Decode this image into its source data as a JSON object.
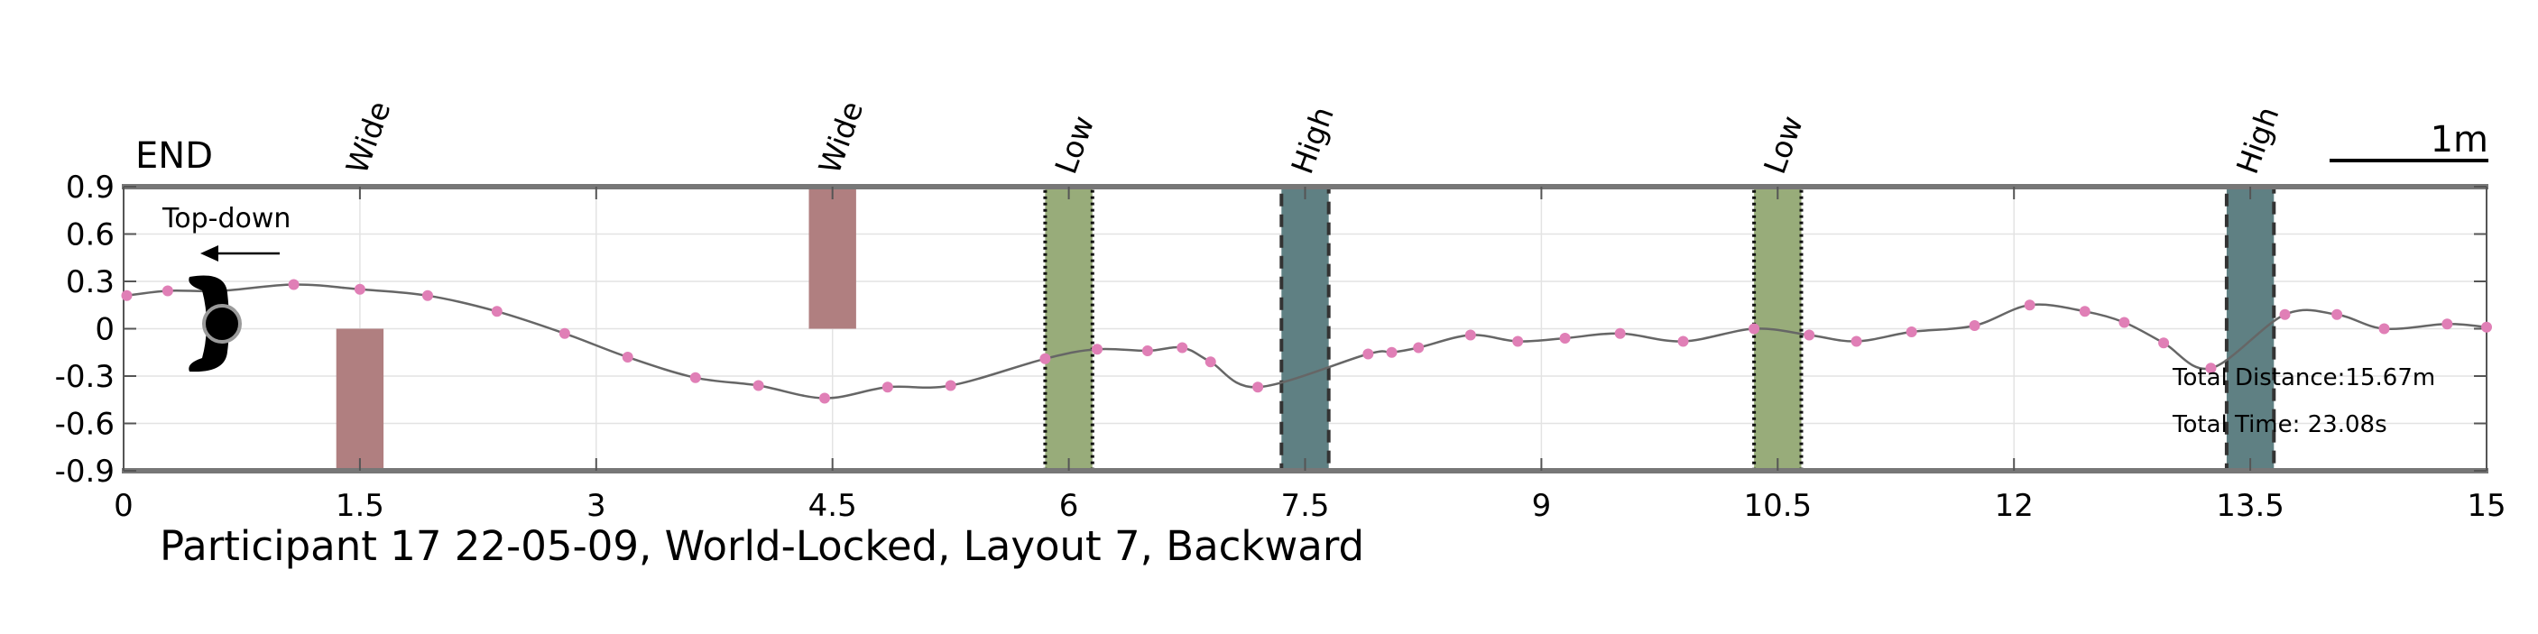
{
  "chart_data": {
    "type": "line",
    "title": "Participant 17 22-05-09, World-Locked, Layout 7, Backward",
    "end_label": "END",
    "scale_label": "1m",
    "xlim": [
      0,
      15
    ],
    "ylim": [
      -0.9,
      0.9
    ],
    "x_ticks": [
      "0",
      "1.5",
      "3",
      "4.5",
      "6",
      "7.5",
      "9",
      "10.5",
      "12",
      "13.5",
      "15"
    ],
    "y_ticks": [
      "0.9",
      "0.6",
      "0.3",
      "0",
      "-0.3",
      "-0.6",
      "-0.9"
    ],
    "grid": true,
    "view_label": "Top-down",
    "total_distance": "Total Distance:15.67m",
    "total_time": "Total Time: 23.08s",
    "obstacles": [
      {
        "label": "Wide",
        "type": "wide",
        "x": 1.5,
        "x0": 1.35,
        "x1": 1.65,
        "y0": -0.9,
        "y1": 0.0,
        "color": "#b07f80"
      },
      {
        "label": "Wide",
        "type": "wide",
        "x": 4.5,
        "x0": 4.35,
        "x1": 4.65,
        "y0": 0.0,
        "y1": 0.9,
        "color": "#b07f80"
      },
      {
        "label": "Low",
        "type": "low",
        "x": 6.0,
        "x0": 5.85,
        "x1": 6.15,
        "y0": -0.9,
        "y1": 0.9,
        "color": "#98ac7a"
      },
      {
        "label": "High",
        "type": "high",
        "x": 7.5,
        "x0": 7.35,
        "x1": 7.65,
        "y0": -0.9,
        "y1": 0.9,
        "color": "#5f8083"
      },
      {
        "label": "Low",
        "type": "low",
        "x": 10.5,
        "x0": 10.35,
        "x1": 10.65,
        "y0": -0.9,
        "y1": 0.9,
        "color": "#98ac7a"
      },
      {
        "label": "High",
        "type": "high",
        "x": 13.5,
        "x0": 13.35,
        "x1": 13.65,
        "y0": -0.9,
        "y1": 0.9,
        "color": "#5f8083"
      }
    ],
    "series": [
      {
        "color": "#666666",
        "marker_color": "#e07fb6",
        "x": [
          0.02,
          0.28,
          0.62,
          1.08,
          1.5,
          1.93,
          2.37,
          2.8,
          3.2,
          3.63,
          4.03,
          4.45,
          4.85,
          5.25,
          5.85,
          6.18,
          6.5,
          6.72,
          6.9,
          7.2,
          7.9,
          8.05,
          8.22,
          8.55,
          8.85,
          9.15,
          9.5,
          9.9,
          10.35,
          10.7,
          11.0,
          11.35,
          11.75,
          12.1,
          12.45,
          12.7,
          12.95,
          13.25,
          13.72,
          14.05,
          14.35,
          14.75,
          15.0
        ],
        "y": [
          0.21,
          0.24,
          0.24,
          0.28,
          0.25,
          0.21,
          0.11,
          -0.03,
          -0.18,
          -0.31,
          -0.36,
          -0.44,
          -0.37,
          -0.36,
          -0.19,
          -0.13,
          -0.14,
          -0.12,
          -0.21,
          -0.37,
          -0.16,
          -0.15,
          -0.12,
          -0.04,
          -0.08,
          -0.06,
          -0.03,
          -0.08,
          0.0,
          -0.04,
          -0.08,
          -0.02,
          0.02,
          0.15,
          0.11,
          0.04,
          -0.09,
          -0.25,
          0.09,
          0.09,
          0.0,
          0.03,
          0.01
        ]
      }
    ]
  }
}
